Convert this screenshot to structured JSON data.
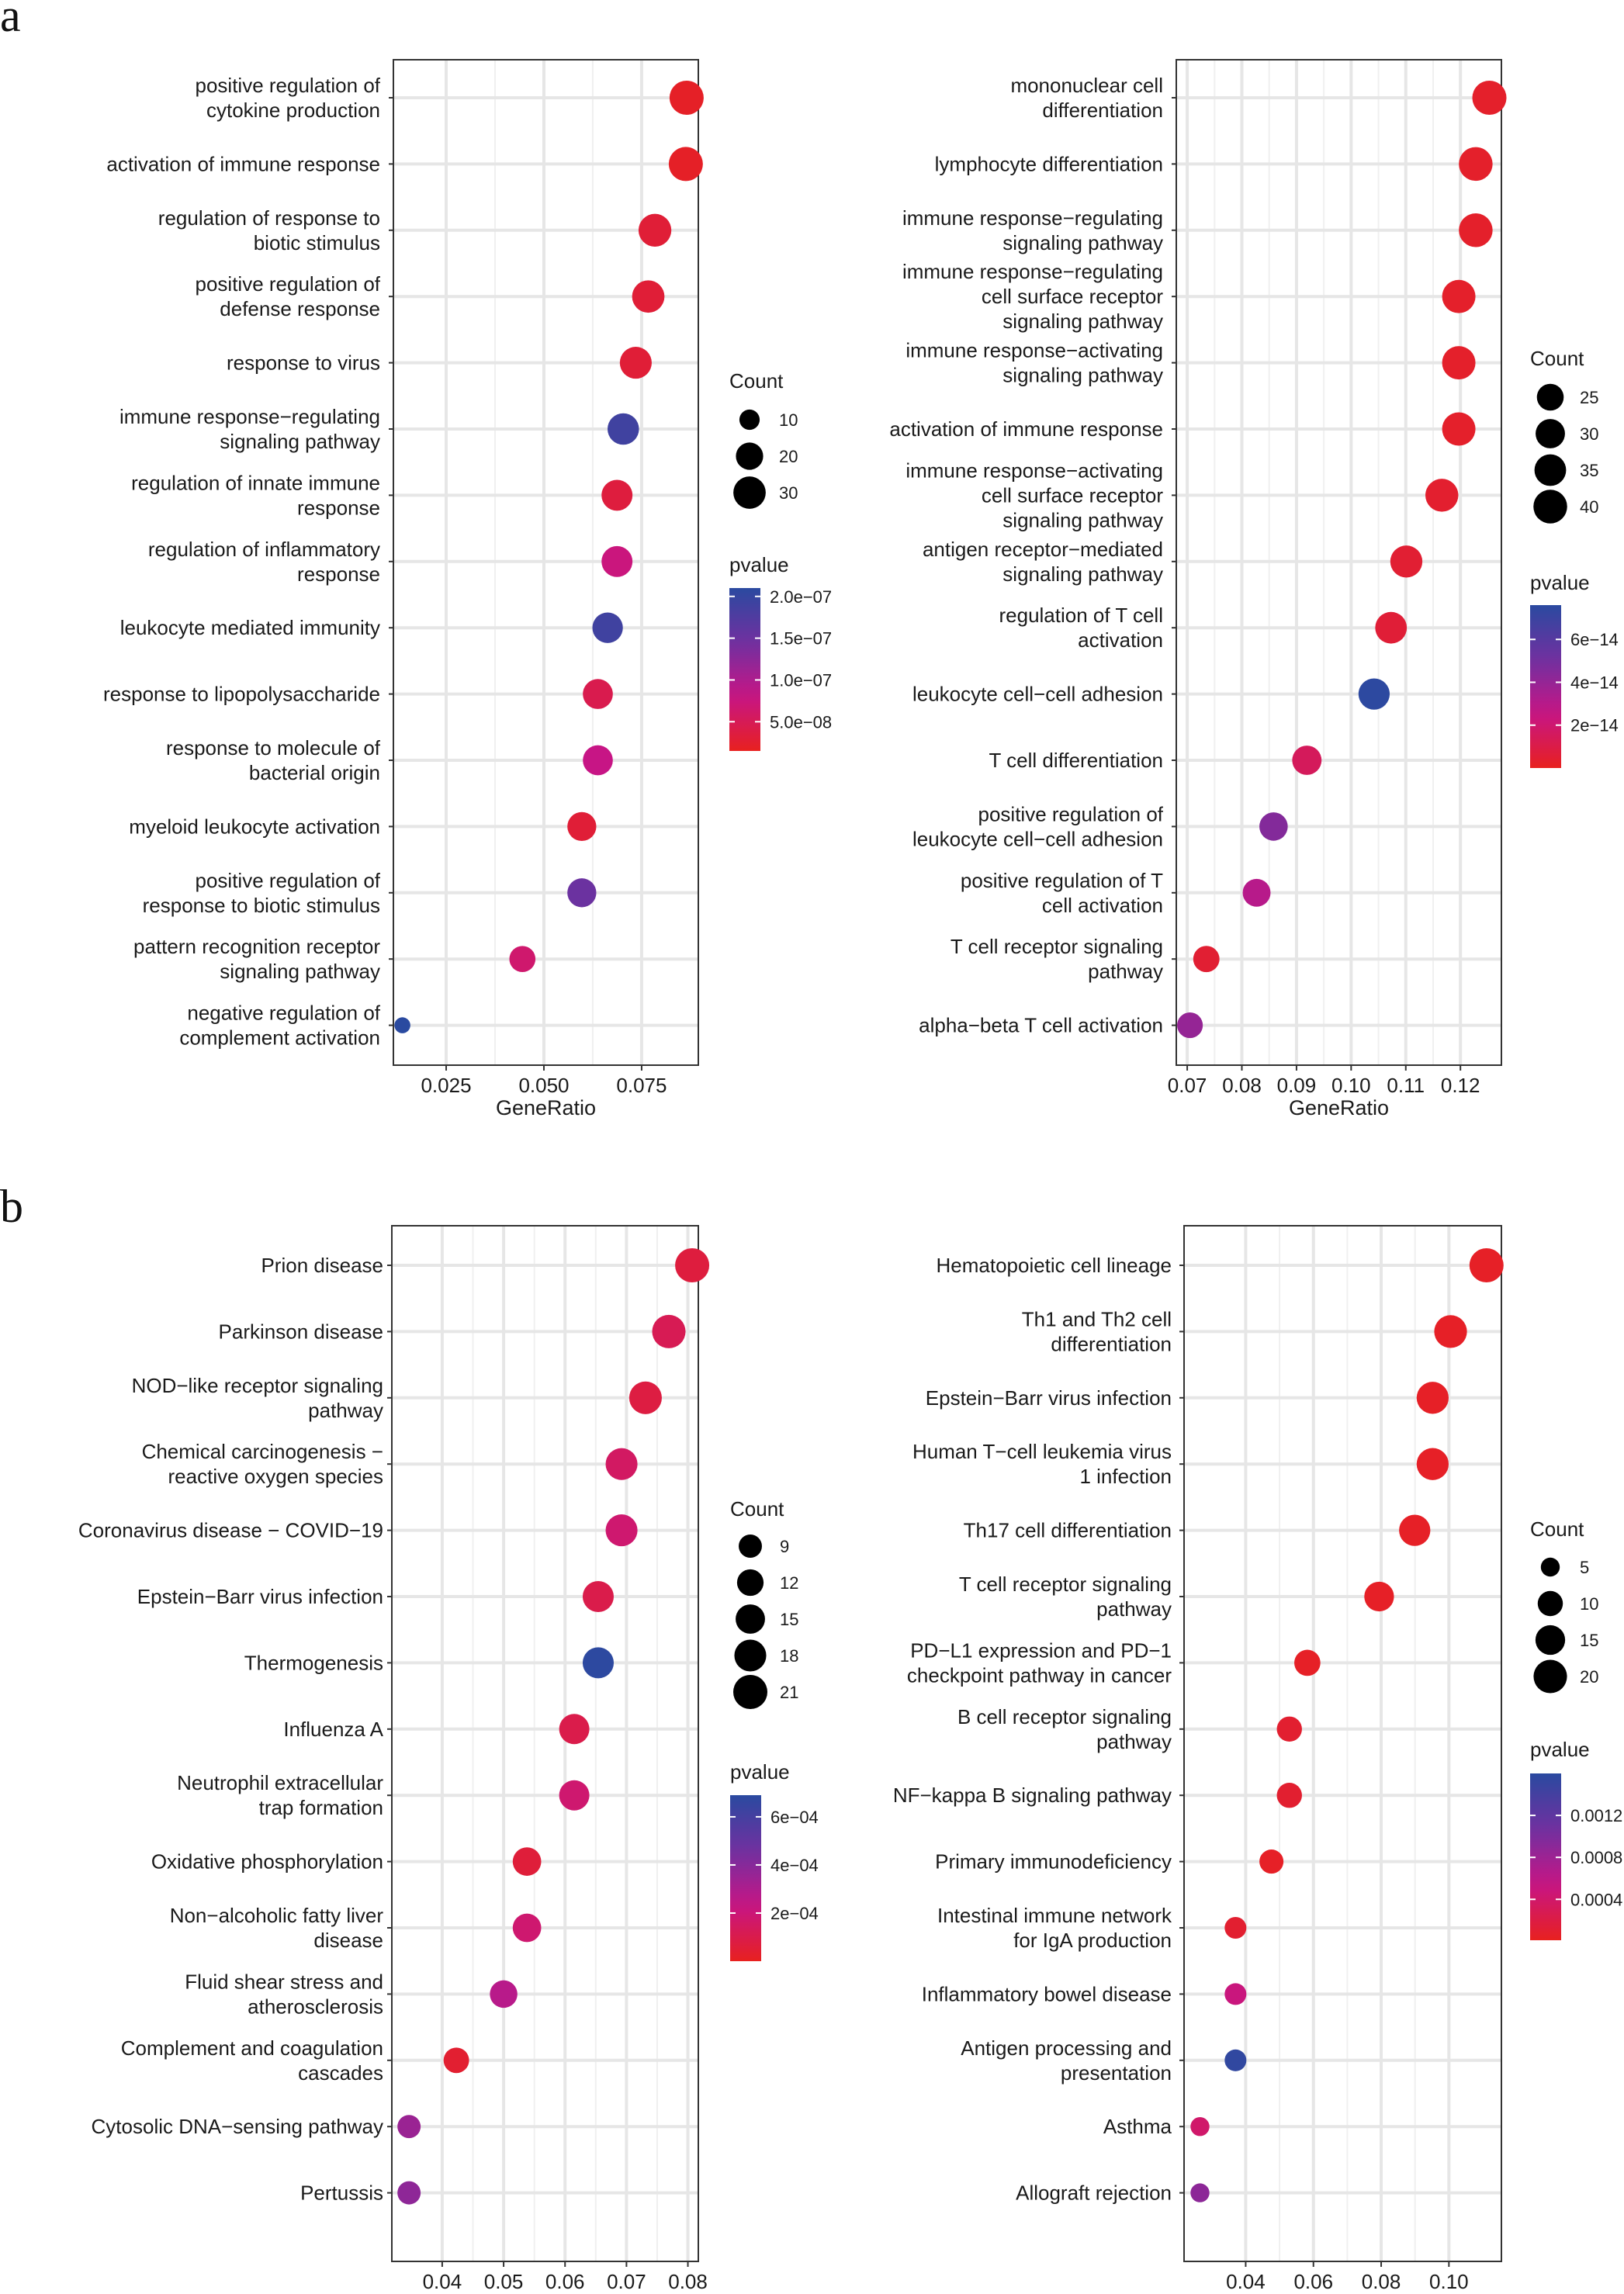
{
  "panel_labels": [
    "a",
    "b"
  ],
  "chart_data": [
    {
      "type": "scatter",
      "panel": "a",
      "position": "left",
      "xlabel": "GeneRatio",
      "xlim": [
        0.0115,
        0.0895
      ],
      "xticks": [
        {
          "v": 0.025,
          "label": "0.025"
        },
        {
          "v": 0.05,
          "label": "0.050"
        },
        {
          "v": 0.075,
          "label": "0.075"
        }
      ],
      "categories": [
        [
          "positive regulation of",
          "cytokine production"
        ],
        [
          "activation of immune response"
        ],
        [
          "regulation of response to",
          "biotic stimulus"
        ],
        [
          "positive regulation of",
          "defense response"
        ],
        [
          "response to virus"
        ],
        [
          "immune response−regulating",
          "signaling pathway"
        ],
        [
          "regulation of innate immune",
          "response"
        ],
        [
          "regulation of inflammatory",
          "response"
        ],
        [
          "leukocyte mediated immunity"
        ],
        [
          "response to lipopolysaccharide"
        ],
        [
          "response to molecule of",
          "bacterial origin"
        ],
        [
          "myeloid leukocyte activation"
        ],
        [
          "positive regulation of",
          "response to biotic stimulus"
        ],
        [
          "pattern recognition receptor",
          "signaling pathway"
        ],
        [
          "negative regulation of",
          "complement activation"
        ]
      ],
      "gene_ratio": [
        0.0865,
        0.0863,
        0.0784,
        0.0767,
        0.0735,
        0.0703,
        0.0687,
        0.0687,
        0.0663,
        0.0638,
        0.0638,
        0.0597,
        0.0597,
        0.0445,
        0.0138
      ],
      "count": [
        34,
        34,
        31,
        30,
        29,
        28,
        27,
        27,
        26,
        25,
        25,
        23,
        23,
        18,
        6
      ],
      "pvalue": [
        2e-08,
        2e-08,
        3e-08,
        3e-08,
        3e-08,
        1.9e-07,
        3.5e-08,
        7.5e-08,
        1.9e-07,
        4.5e-08,
        8e-08,
        3e-08,
        1.5e-07,
        6.5e-08,
        2.1e-07
      ],
      "size_legend": {
        "title": "Count",
        "values": [
          10,
          20,
          30
        ],
        "labels": [
          "10",
          "20",
          "30"
        ]
      },
      "color_legend": {
        "title": "pvalue",
        "min": 1.5e-08,
        "max": 2.1e-07,
        "ticks": [
          2e-07,
          1.5e-07,
          1e-07,
          5e-08
        ],
        "labels": [
          "2.0e−07",
          "1.5e−07",
          "1.0e−07",
          "5.0e−08"
        ]
      }
    },
    {
      "type": "scatter",
      "panel": "a",
      "position": "right",
      "xlabel": "GeneRatio",
      "xlim": [
        0.068,
        0.1275
      ],
      "xticks": [
        {
          "v": 0.07,
          "label": "0.07"
        },
        {
          "v": 0.08,
          "label": "0.08"
        },
        {
          "v": 0.09,
          "label": "0.09"
        },
        {
          "v": 0.1,
          "label": "0.10"
        },
        {
          "v": 0.11,
          "label": "0.11"
        },
        {
          "v": 0.12,
          "label": "0.12"
        }
      ],
      "categories": [
        [
          "mononuclear cell",
          "differentiation"
        ],
        [
          "lymphocyte differentiation"
        ],
        [
          "immune response−regulating",
          "signaling pathway"
        ],
        [
          "immune response−regulating",
          "cell surface receptor",
          "signaling pathway"
        ],
        [
          "immune response−activating",
          "signaling pathway"
        ],
        [
          "activation of immune response"
        ],
        [
          "immune response−activating",
          "cell surface receptor",
          "signaling pathway"
        ],
        [
          "antigen receptor−mediated",
          "signaling pathway"
        ],
        [
          "regulation of T cell",
          "activation"
        ],
        [
          "leukocyte cell−cell adhesion"
        ],
        [
          "T cell differentiation"
        ],
        [
          "positive regulation of",
          "leukocyte cell−cell adhesion"
        ],
        [
          "positive regulation of T",
          "cell activation"
        ],
        [
          "T cell receptor signaling",
          "pathway"
        ],
        [
          "alpha−beta T cell activation"
        ]
      ],
      "gene_ratio": [
        0.1253,
        0.1228,
        0.1228,
        0.1197,
        0.1197,
        0.1197,
        0.1166,
        0.1101,
        0.1073,
        0.1042,
        0.0919,
        0.0858,
        0.0827,
        0.0735,
        0.0705
      ],
      "count": [
        41,
        40,
        40,
        39,
        39,
        39,
        38,
        36,
        35,
        34,
        30,
        28,
        27,
        24,
        23
      ],
      "pvalue": [
        3e-15,
        3e-15,
        3e-15,
        3e-15,
        3e-15,
        3e-15,
        4e-15,
        5e-15,
        6e-15,
        7.5e-14,
        1.5e-14,
        4.5e-14,
        3e-14,
        5e-15,
        4e-14
      ],
      "size_legend": {
        "title": "Count",
        "values": [
          25,
          30,
          35,
          40
        ],
        "labels": [
          "25",
          "30",
          "35",
          "40"
        ]
      },
      "color_legend": {
        "title": "pvalue",
        "min": 0,
        "max": 7.6e-14,
        "ticks": [
          6e-14,
          4e-14,
          2e-14
        ],
        "labels": [
          "6e−14",
          "4e−14",
          "2e−14"
        ]
      }
    },
    {
      "type": "scatter",
      "panel": "b",
      "position": "left",
      "xlabel": "GeneRatio",
      "xlim": [
        0.0318,
        0.0817
      ],
      "xticks": [
        {
          "v": 0.04,
          "label": "0.04"
        },
        {
          "v": 0.05,
          "label": "0.05"
        },
        {
          "v": 0.06,
          "label": "0.06"
        },
        {
          "v": 0.07,
          "label": "0.07"
        },
        {
          "v": 0.08,
          "label": "0.08"
        }
      ],
      "categories": [
        [
          "Prion disease"
        ],
        [
          "Parkinson disease"
        ],
        [
          "NOD−like receptor signaling",
          "pathway"
        ],
        [
          "Chemical carcinogenesis −",
          "reactive oxygen species"
        ],
        [
          "Coronavirus disease − COVID−19"
        ],
        [
          "Epstein−Barr virus infection"
        ],
        [
          "Thermogenesis"
        ],
        [
          "Influenza A"
        ],
        [
          "Neutrophil extracellular",
          "trap formation"
        ],
        [
          "Oxidative phosphorylation"
        ],
        [
          "Non−alcoholic fatty liver",
          "disease"
        ],
        [
          "Fluid shear stress and",
          "atherosclerosis"
        ],
        [
          "Complement and coagulation",
          "cascades"
        ],
        [
          "Cytosolic DNA−sensing pathway"
        ],
        [
          "Pertussis"
        ]
      ],
      "gene_ratio": [
        0.0807,
        0.0769,
        0.0731,
        0.0692,
        0.0692,
        0.0654,
        0.0654,
        0.0615,
        0.0615,
        0.0538,
        0.0538,
        0.05,
        0.0423,
        0.0346,
        0.0346
      ],
      "count": [
        21,
        20,
        19,
        18,
        18,
        17,
        17,
        16,
        16,
        14,
        14,
        13,
        11,
        9,
        9
      ],
      "pvalue": [
        7e-05,
        0.00012,
        8e-05,
        0.00015,
        0.00018,
        0.0001,
        0.00068,
        0.0001,
        0.00018,
        6e-05,
        0.00018,
        0.00027,
        4e-05,
        0.00035,
        0.00038
      ],
      "size_legend": {
        "title": "Count",
        "values": [
          9,
          12,
          15,
          18,
          21
        ],
        "labels": [
          "9",
          "12",
          "15",
          "18",
          "21"
        ]
      },
      "color_legend": {
        "title": "pvalue",
        "min": 0,
        "max": 0.00069,
        "ticks": [
          0.0006,
          0.0004,
          0.0002
        ],
        "labels": [
          "6e−04",
          "4e−04",
          "2e−04"
        ]
      }
    },
    {
      "type": "scatter",
      "panel": "b",
      "position": "right",
      "xlabel": "GeneRatio",
      "xlim": [
        0.0218,
        0.1155
      ],
      "xticks": [
        {
          "v": 0.04,
          "label": "0.04"
        },
        {
          "v": 0.06,
          "label": "0.06"
        },
        {
          "v": 0.08,
          "label": "0.08"
        },
        {
          "v": 0.1,
          "label": "0.10"
        }
      ],
      "categories": [
        [
          "Hematopoietic cell lineage"
        ],
        [
          "Th1 and Th2 cell",
          "differentiation"
        ],
        [
          "Epstein−Barr virus infection"
        ],
        [
          "Human T−cell leukemia virus",
          "1 infection"
        ],
        [
          "Th17 cell differentiation"
        ],
        [
          "T cell receptor signaling",
          "pathway"
        ],
        [
          "PD−L1 expression and PD−1",
          "checkpoint pathway in cancer"
        ],
        [
          "B cell receptor signaling",
          "pathway"
        ],
        [
          "NF−kappa B signaling pathway"
        ],
        [
          "Primary immunodeficiency"
        ],
        [
          "Intestinal immune network",
          "for IgA production"
        ],
        [
          "Inflammatory bowel disease"
        ],
        [
          "Antigen processing and",
          "presentation"
        ],
        [
          "Asthma"
        ],
        [
          "Allograft rejection"
        ]
      ],
      "gene_ratio": [
        0.1111,
        0.1005,
        0.0952,
        0.0952,
        0.0899,
        0.0794,
        0.0582,
        0.0529,
        0.0529,
        0.0476,
        0.037,
        0.037,
        0.037,
        0.0265,
        0.0265
      ],
      "count": [
        21,
        19,
        18,
        18,
        17,
        15,
        11,
        10,
        10,
        9,
        7,
        7,
        7,
        5,
        5
      ],
      "pvalue": [
        5e-05,
        5e-05,
        5e-05,
        5e-05,
        5e-05,
        5e-05,
        5e-05,
        0.0001,
        0.0001,
        5e-05,
        0.0001,
        0.0005,
        0.00155,
        0.0004,
        0.0009
      ],
      "size_legend": {
        "title": "Count",
        "values": [
          5,
          10,
          15,
          20
        ],
        "labels": [
          "5",
          "10",
          "15",
          "20"
        ]
      },
      "color_legend": {
        "title": "pvalue",
        "min": 1e-05,
        "max": 0.0016,
        "ticks": [
          0.0012,
          0.0008,
          0.0004
        ],
        "labels": [
          "0.0012",
          "0.0008",
          "0.0004"
        ]
      }
    }
  ]
}
